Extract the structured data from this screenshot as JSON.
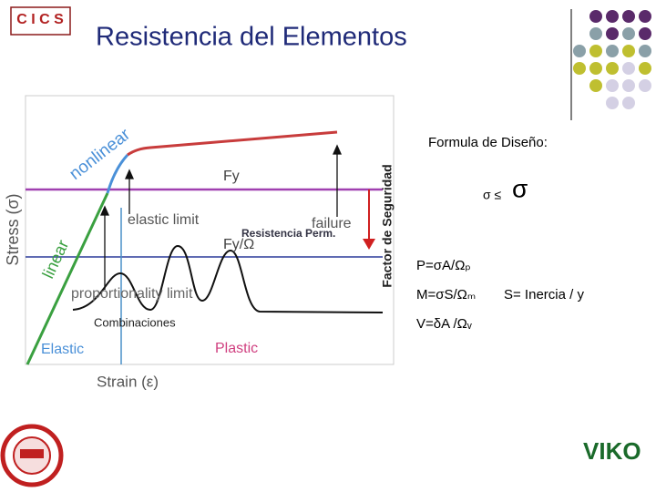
{
  "header": {
    "title": "Resistencia del Elementos",
    "logo": "C I C S"
  },
  "diagram": {
    "y_axis": "Stress (σ)",
    "x_axis": "Strain (ε)",
    "linear": "linear",
    "nonlinear": "nonlinear",
    "fy": "Fy",
    "fy_omega": "Fy/Ω",
    "elastic_limit": "elastic limit",
    "failure": "failure",
    "allowable": "Resistencia Perm.",
    "proportionality_limit": "proportionality limit",
    "combinations": "Combinaciones",
    "elastic": "Elastic",
    "plastic": "Plastic",
    "safety_factor": "Factor de Seguridad"
  },
  "design": {
    "heading": "Formula de Diseño:",
    "inequality": "σ ≤",
    "sigma": "σ",
    "formulas": [
      "P=σA/Ωₚ",
      "M=σS/Ωₘ",
      "V=δA /Ωᵥ"
    ],
    "note": "S= Inercia / y"
  },
  "footer": {
    "logo_right": "VIKO"
  }
}
